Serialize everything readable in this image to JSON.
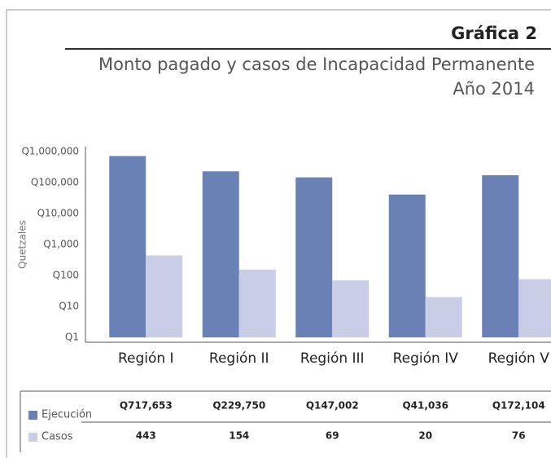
{
  "chart_data": {
    "type": "bar",
    "title": "Gráfica 2",
    "subtitle": "Monto pagado y casos de Incapacidad Permanente",
    "subtitle2": "Año 2014",
    "y_label": "Quetzales",
    "categories": [
      "Región I",
      "Región II",
      "Región III",
      "Región IV",
      "Región V"
    ],
    "series": [
      {
        "name": "Ejecución",
        "color": "#6a81b5",
        "values": [
          717653,
          229750,
          147002,
          41036,
          172104
        ],
        "value_labels": [
          "Q717,653",
          "Q229,750",
          "Q147,002",
          "Q41,036",
          "Q172,104"
        ]
      },
      {
        "name": "Casos",
        "color": "#c9cee6",
        "values": [
          443,
          154,
          69,
          20,
          76
        ]
      }
    ],
    "ylim": [
      1,
      1000000
    ],
    "log_scale": true,
    "yticks": [
      {
        "value": 1,
        "label": "Q1"
      },
      {
        "value": 10,
        "label": "Q10"
      },
      {
        "value": 100,
        "label": "Q100"
      },
      {
        "value": 1000,
        "label": "Q1,000"
      },
      {
        "value": 10000,
        "label": "Q10,000"
      },
      {
        "value": 100000,
        "label": "Q100,000"
      },
      {
        "value": 1000000,
        "label": "Q1,000,000"
      }
    ]
  }
}
